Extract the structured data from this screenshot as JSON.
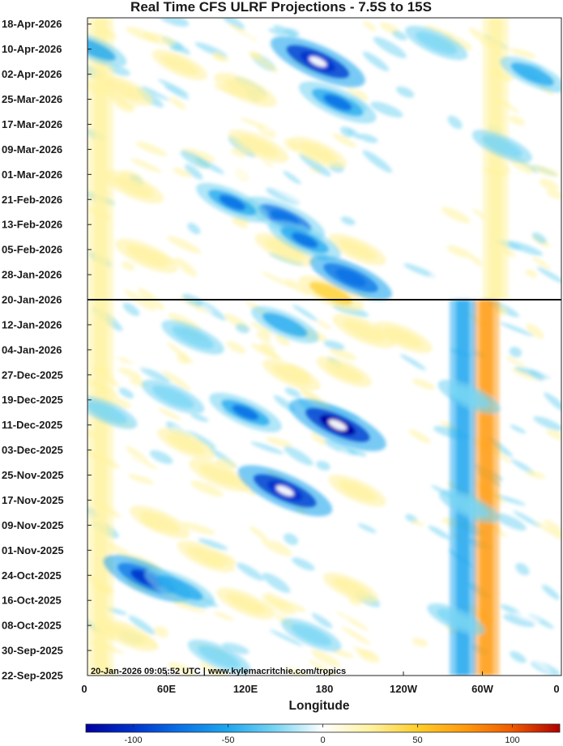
{
  "chart_data": {
    "type": "heatmap",
    "title": "Real Time CFS ULRF Projections - 7.5S to 15S",
    "xlabel": "Longitude",
    "ylabel": "",
    "x_ticks": [
      "0",
      "60E",
      "120E",
      "180",
      "120W",
      "60W",
      "0"
    ],
    "x_tick_degrees": [
      0,
      60,
      120,
      180,
      240,
      300,
      360
    ],
    "xlim": [
      0,
      360
    ],
    "y_ticks": [
      "18-Apr-2026",
      "10-Apr-2026",
      "02-Apr-2026",
      "25-Mar-2026",
      "17-Mar-2026",
      "09-Mar-2026",
      "01-Mar-2026",
      "21-Feb-2026",
      "13-Feb-2026",
      "05-Feb-2026",
      "28-Jan-2026",
      "20-Jan-2026",
      "12-Jan-2026",
      "04-Jan-2026",
      "27-Dec-2025",
      "19-Dec-2025",
      "11-Dec-2025",
      "03-Dec-2025",
      "25-Nov-2025",
      "17-Nov-2025",
      "09-Nov-2025",
      "01-Nov-2025",
      "24-Oct-2025",
      "16-Oct-2025",
      "08-Oct-2025",
      "30-Sep-2025",
      "22-Sep-2025"
    ],
    "ylim": [
      "22-Sep-2025",
      "20-Apr-2026"
    ],
    "current_date_line": "20-Jan-2026",
    "colorbar": {
      "ticks": [
        -100,
        -50,
        0,
        50,
        100
      ],
      "range": [
        -125,
        125
      ]
    },
    "colors": [
      "#0000a0",
      "#0033cc",
      "#0a73e6",
      "#1ea7ee",
      "#79d5f3",
      "#ffffff",
      "#fff2a0",
      "#ffcd2a",
      "#ff9a10",
      "#f05a00",
      "#b00000"
    ],
    "anomaly_features": [
      {
        "lon": 28,
        "date": "2026-03-28",
        "value": 35
      },
      {
        "lon": 35,
        "date": "2026-02-25",
        "value": 40
      },
      {
        "lon": 45,
        "date": "2026-02-03",
        "value": 45
      },
      {
        "lon": 70,
        "date": "2026-04-05",
        "value": 30
      },
      {
        "lon": 120,
        "date": "2026-03-28",
        "value": 45
      },
      {
        "lon": 130,
        "date": "2026-03-10",
        "value": 40
      },
      {
        "lon": 175,
        "date": "2026-03-08",
        "value": 35
      },
      {
        "lon": 150,
        "date": "2026-02-05",
        "value": 40
      },
      {
        "lon": 205,
        "date": "2026-02-05",
        "value": 35
      },
      {
        "lon": 185,
        "date": "2026-01-22",
        "value": 50
      },
      {
        "lon": 175,
        "date": "2026-04-06",
        "value": -110
      },
      {
        "lon": 190,
        "date": "2026-03-24",
        "value": -75
      },
      {
        "lon": 150,
        "date": "2026-02-15",
        "value": -80
      },
      {
        "lon": 165,
        "date": "2026-02-08",
        "value": -65
      },
      {
        "lon": 200,
        "date": "2026-01-27",
        "value": -85
      },
      {
        "lon": 110,
        "date": "2026-02-20",
        "value": -65
      },
      {
        "lon": 265,
        "date": "2026-04-12",
        "value": -45
      },
      {
        "lon": 315,
        "date": "2026-03-10",
        "value": -40
      },
      {
        "lon": 338,
        "date": "2026-04-02",
        "value": -50
      },
      {
        "lon": 80,
        "date": "2026-01-08",
        "value": -45
      },
      {
        "lon": 150,
        "date": "2026-01-12",
        "value": -55
      },
      {
        "lon": 210,
        "date": "2026-01-10",
        "value": 45
      },
      {
        "lon": 240,
        "date": "2026-01-08",
        "value": 35
      },
      {
        "lon": 190,
        "date": "2025-12-11",
        "value": -115
      },
      {
        "lon": 120,
        "date": "2025-12-15",
        "value": -65
      },
      {
        "lon": 65,
        "date": "2025-12-20",
        "value": -45
      },
      {
        "lon": 100,
        "date": "2025-11-25",
        "value": 40
      },
      {
        "lon": 75,
        "date": "2025-12-05",
        "value": 35
      },
      {
        "lon": 55,
        "date": "2025-11-10",
        "value": 40
      },
      {
        "lon": 150,
        "date": "2025-11-20",
        "value": -110
      },
      {
        "lon": 205,
        "date": "2025-11-20",
        "value": 35
      },
      {
        "lon": 155,
        "date": "2025-12-27",
        "value": 35
      },
      {
        "lon": 195,
        "date": "2025-12-28",
        "value": 30
      },
      {
        "lon": 45,
        "date": "2025-10-23",
        "value": -95
      },
      {
        "lon": 70,
        "date": "2025-10-20",
        "value": -60
      },
      {
        "lon": 90,
        "date": "2025-10-30",
        "value": 35
      },
      {
        "lon": 30,
        "date": "2025-10-05",
        "value": 40
      },
      {
        "lon": 120,
        "date": "2025-10-15",
        "value": 35
      },
      {
        "lon": 200,
        "date": "2025-10-20",
        "value": 30
      },
      {
        "lon": 100,
        "date": "2025-09-28",
        "value": -45
      },
      {
        "lon": 170,
        "date": "2025-10-05",
        "value": -40
      },
      {
        "lon": 290,
        "date": "2025-11-15",
        "value": -40
      },
      {
        "lon": 290,
        "date": "2025-12-20",
        "value": -45
      },
      {
        "lon": 280,
        "date": "2025-10-10",
        "value": -35
      },
      {
        "lon": 15,
        "date": "2025-12-15",
        "value": -40
      },
      {
        "lon": 5,
        "date": "2026-04-10",
        "value": -50
      }
    ],
    "wave_bands": [
      {
        "lon": 303,
        "start": "2025-09-22",
        "end": "2026-01-20",
        "value": 70
      },
      {
        "lon": 310,
        "start": "2026-01-20",
        "end": "2026-04-20",
        "value": 30
      },
      {
        "lon": 285,
        "start": "2025-09-22",
        "end": "2026-01-20",
        "value": -40
      },
      {
        "lon": 10,
        "start": "2025-09-22",
        "end": "2026-04-20",
        "value": 30
      }
    ]
  },
  "credit": "20-Jan-2026 09:05:52 UTC | www.kylemacritchie.com/tropics"
}
